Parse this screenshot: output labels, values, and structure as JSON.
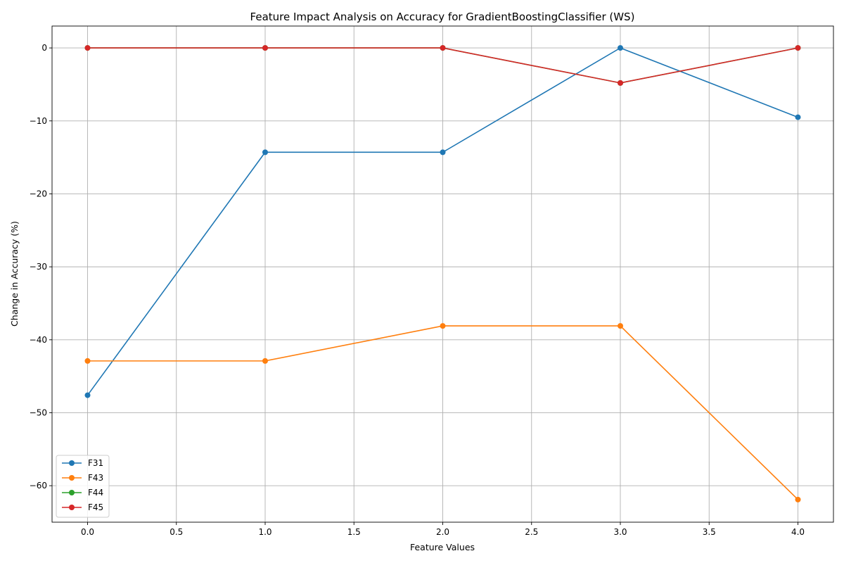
{
  "chart_data": {
    "type": "line",
    "title": "Feature Impact Analysis on Accuracy for GradientBoostingClassifier (WS)",
    "xlabel": "Feature Values",
    "ylabel": "Change in Accuracy (%)",
    "xlim": [
      -0.2,
      4.2
    ],
    "ylim": [
      -65,
      3
    ],
    "xticks": [
      0.0,
      0.5,
      1.0,
      1.5,
      2.0,
      2.5,
      3.0,
      3.5,
      4.0
    ],
    "xtick_labels": [
      "0.0",
      "0.5",
      "1.0",
      "1.5",
      "2.0",
      "2.5",
      "3.0",
      "3.5",
      "4.0"
    ],
    "yticks": [
      0,
      -10,
      -20,
      -30,
      -40,
      -50,
      -60
    ],
    "ytick_labels": [
      "0",
      "−10",
      "−20",
      "−30",
      "−40",
      "−50",
      "−60"
    ],
    "grid": true,
    "legend_position": "lower-left",
    "series": [
      {
        "name": "F31",
        "color": "#1f77b4",
        "x": [
          0,
          1,
          2,
          3,
          4
        ],
        "y": [
          -47.6,
          -14.3,
          -14.3,
          0.0,
          -9.5
        ]
      },
      {
        "name": "F43",
        "color": "#ff7f0e",
        "x": [
          0,
          1,
          2,
          3,
          4
        ],
        "y": [
          -42.9,
          -42.9,
          -38.1,
          -38.1,
          -61.9
        ]
      },
      {
        "name": "F44",
        "color": "#2ca02c",
        "x": [
          0,
          1,
          2,
          3,
          4
        ],
        "y": [
          0.0,
          0.0,
          0.0,
          -4.8,
          0.0
        ]
      },
      {
        "name": "F45",
        "color": "#d62728",
        "x": [
          0,
          1,
          2,
          3,
          4
        ],
        "y": [
          0.0,
          0.0,
          0.0,
          -4.8,
          0.0
        ]
      }
    ]
  }
}
